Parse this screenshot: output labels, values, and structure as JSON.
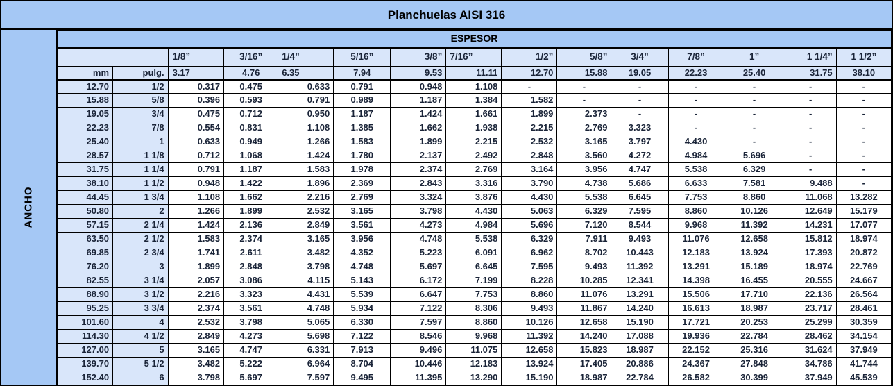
{
  "title": "Planchuelas AISI 316",
  "labels": {
    "col_group": "ESPESOR",
    "row_group": "ANCHO",
    "unit_mm": "mm",
    "unit_pulg": "pulg.",
    "empty_value": "-"
  },
  "columns": {
    "fractions": [
      "1/8”",
      "3/16”",
      "1/4”",
      "5/16”",
      "3/8”",
      "7/16”",
      "1/2”",
      "5/8”",
      "3/4”",
      "7/8”",
      "1”",
      "1 1/4”",
      "1 1/2”"
    ],
    "mm": [
      "3.17",
      "4.76",
      "6.35",
      "7.94",
      "9.53",
      "11.11",
      "12.70",
      "15.88",
      "19.05",
      "22.23",
      "25.40",
      "31.75",
      "38.10"
    ]
  },
  "rows": [
    {
      "mm": "12.70",
      "pulg": "1/2",
      "values": [
        "0.317",
        "0.475",
        "0.633",
        "0.791",
        "0.948",
        "1.108",
        "-",
        "-",
        "-",
        "-",
        "-",
        "-",
        "-"
      ]
    },
    {
      "mm": "15.88",
      "pulg": "5/8",
      "values": [
        "0.396",
        "0.593",
        "0.791",
        "0.989",
        "1.187",
        "1.384",
        "1.582",
        "-",
        "-",
        "-",
        "-",
        "-",
        "-"
      ]
    },
    {
      "mm": "19.05",
      "pulg": "3/4",
      "values": [
        "0.475",
        "0.712",
        "0.950",
        "1.187",
        "1.424",
        "1.661",
        "1.899",
        "2.373",
        "-",
        "-",
        "-",
        "-",
        "-"
      ]
    },
    {
      "mm": "22.23",
      "pulg": "7/8",
      "values": [
        "0.554",
        "0.831",
        "1.108",
        "1.385",
        "1.662",
        "1.938",
        "2.215",
        "2.769",
        "3.323",
        "-",
        "-",
        "-",
        "-"
      ]
    },
    {
      "mm": "25.40",
      "pulg": "1",
      "values": [
        "0.633",
        "0.949",
        "1.266",
        "1.583",
        "1.899",
        "2.215",
        "2.532",
        "3.165",
        "3.797",
        "4.430",
        "-",
        "-",
        "-"
      ]
    },
    {
      "mm": "28.57",
      "pulg": "1 1/8",
      "values": [
        "0.712",
        "1.068",
        "1.424",
        "1.780",
        "2.137",
        "2.492",
        "2.848",
        "3.560",
        "4.272",
        "4.984",
        "5.696",
        "-",
        "-"
      ]
    },
    {
      "mm": "31.75",
      "pulg": "1 1/4",
      "values": [
        "0.791",
        "1.187",
        "1.583",
        "1.978",
        "2.374",
        "2.769",
        "3.164",
        "3.956",
        "4.747",
        "5.538",
        "6.329",
        "-",
        "-"
      ]
    },
    {
      "mm": "38.10",
      "pulg": "1 1/2",
      "values": [
        "0.948",
        "1.422",
        "1.896",
        "2.369",
        "2.843",
        "3.316",
        "3.790",
        "4.738",
        "5.686",
        "6.633",
        "7.581",
        "9.488",
        "-"
      ]
    },
    {
      "mm": "44.45",
      "pulg": "1 3/4",
      "values": [
        "1.108",
        "1.662",
        "2.216",
        "2.769",
        "3.324",
        "3.876",
        "4.430",
        "5.538",
        "6.645",
        "7.753",
        "8.860",
        "11.068",
        "13.282"
      ]
    },
    {
      "mm": "50.80",
      "pulg": "2",
      "values": [
        "1.266",
        "1.899",
        "2.532",
        "3.165",
        "3.798",
        "4.430",
        "5.063",
        "6.329",
        "7.595",
        "8.860",
        "10.126",
        "12.649",
        "15.179"
      ]
    },
    {
      "mm": "57.15",
      "pulg": "2 1/4",
      "values": [
        "1.424",
        "2.136",
        "2.849",
        "3.561",
        "4.273",
        "4.984",
        "5.696",
        "7.120",
        "8.544",
        "9.968",
        "11.392",
        "14.231",
        "17.077"
      ]
    },
    {
      "mm": "63.50",
      "pulg": "2 1/2",
      "values": [
        "1.583",
        "2.374",
        "3.165",
        "3.956",
        "4.748",
        "5.538",
        "6.329",
        "7.911",
        "9.493",
        "11.076",
        "12.658",
        "15.812",
        "18.974"
      ]
    },
    {
      "mm": "69.85",
      "pulg": "2 3/4",
      "values": [
        "1.741",
        "2.611",
        "3.482",
        "4.352",
        "5.223",
        "6.091",
        "6.962",
        "8.702",
        "10.443",
        "12.183",
        "13.924",
        "17.393",
        "20.872"
      ]
    },
    {
      "mm": "76.20",
      "pulg": "3",
      "values": [
        "1.899",
        "2.848",
        "3.798",
        "4.748",
        "5.697",
        "6.645",
        "7.595",
        "9.493",
        "11.392",
        "13.291",
        "15.189",
        "18.974",
        "22.769"
      ]
    },
    {
      "mm": "82.55",
      "pulg": "3 1/4",
      "values": [
        "2.057",
        "3.086",
        "4.115",
        "5.143",
        "6.172",
        "7.199",
        "8.228",
        "10.285",
        "12.341",
        "14.398",
        "16.455",
        "20.555",
        "24.667"
      ]
    },
    {
      "mm": "88.90",
      "pulg": "3 1/2",
      "values": [
        "2.216",
        "3.323",
        "4.431",
        "5.539",
        "6.647",
        "7.753",
        "8.860",
        "11.076",
        "13.291",
        "15.506",
        "17.710",
        "22.136",
        "26.564"
      ]
    },
    {
      "mm": "95.25",
      "pulg": "3 3/4",
      "values": [
        "2.374",
        "3.561",
        "4.748",
        "5.934",
        "7.122",
        "8.306",
        "9.493",
        "11.867",
        "14.240",
        "16.613",
        "18.987",
        "23.717",
        "28.461"
      ]
    },
    {
      "mm": "101.60",
      "pulg": "4",
      "values": [
        "2.532",
        "3.798",
        "5.065",
        "6.330",
        "7.597",
        "8.860",
        "10.126",
        "12.658",
        "15.190",
        "17.721",
        "20.253",
        "25.299",
        "30.359"
      ]
    },
    {
      "mm": "114.30",
      "pulg": "4 1/2",
      "values": [
        "2.849",
        "4.273",
        "5.698",
        "7.122",
        "8.546",
        "9.968",
        "11.392",
        "14.240",
        "17.088",
        "19.936",
        "22.784",
        "28.462",
        "34.154"
      ]
    },
    {
      "mm": "127.00",
      "pulg": "5",
      "values": [
        "3.165",
        "4.747",
        "6.331",
        "7.913",
        "9.496",
        "11.075",
        "12.658",
        "15.823",
        "18.987",
        "22.152",
        "25.316",
        "31.624",
        "37.949"
      ]
    },
    {
      "mm": "139.70",
      "pulg": "5 1/2",
      "values": [
        "3.482",
        "5.222",
        "6.964",
        "8.704",
        "10.446",
        "12.183",
        "13.924",
        "17.405",
        "20.886",
        "24.367",
        "27.848",
        "34.786",
        "41.744"
      ]
    },
    {
      "mm": "152.40",
      "pulg": "6",
      "values": [
        "3.798",
        "5.697",
        "7.597",
        "9.495",
        "11.395",
        "13.290",
        "15.190",
        "18.987",
        "22.784",
        "26.582",
        "30.399",
        "37.949",
        "45.539"
      ]
    }
  ],
  "colors": {
    "header_blue": "#A5C8F5",
    "light_blue": "#D9E6FA",
    "border": "#000000",
    "text": "#1A2438"
  }
}
